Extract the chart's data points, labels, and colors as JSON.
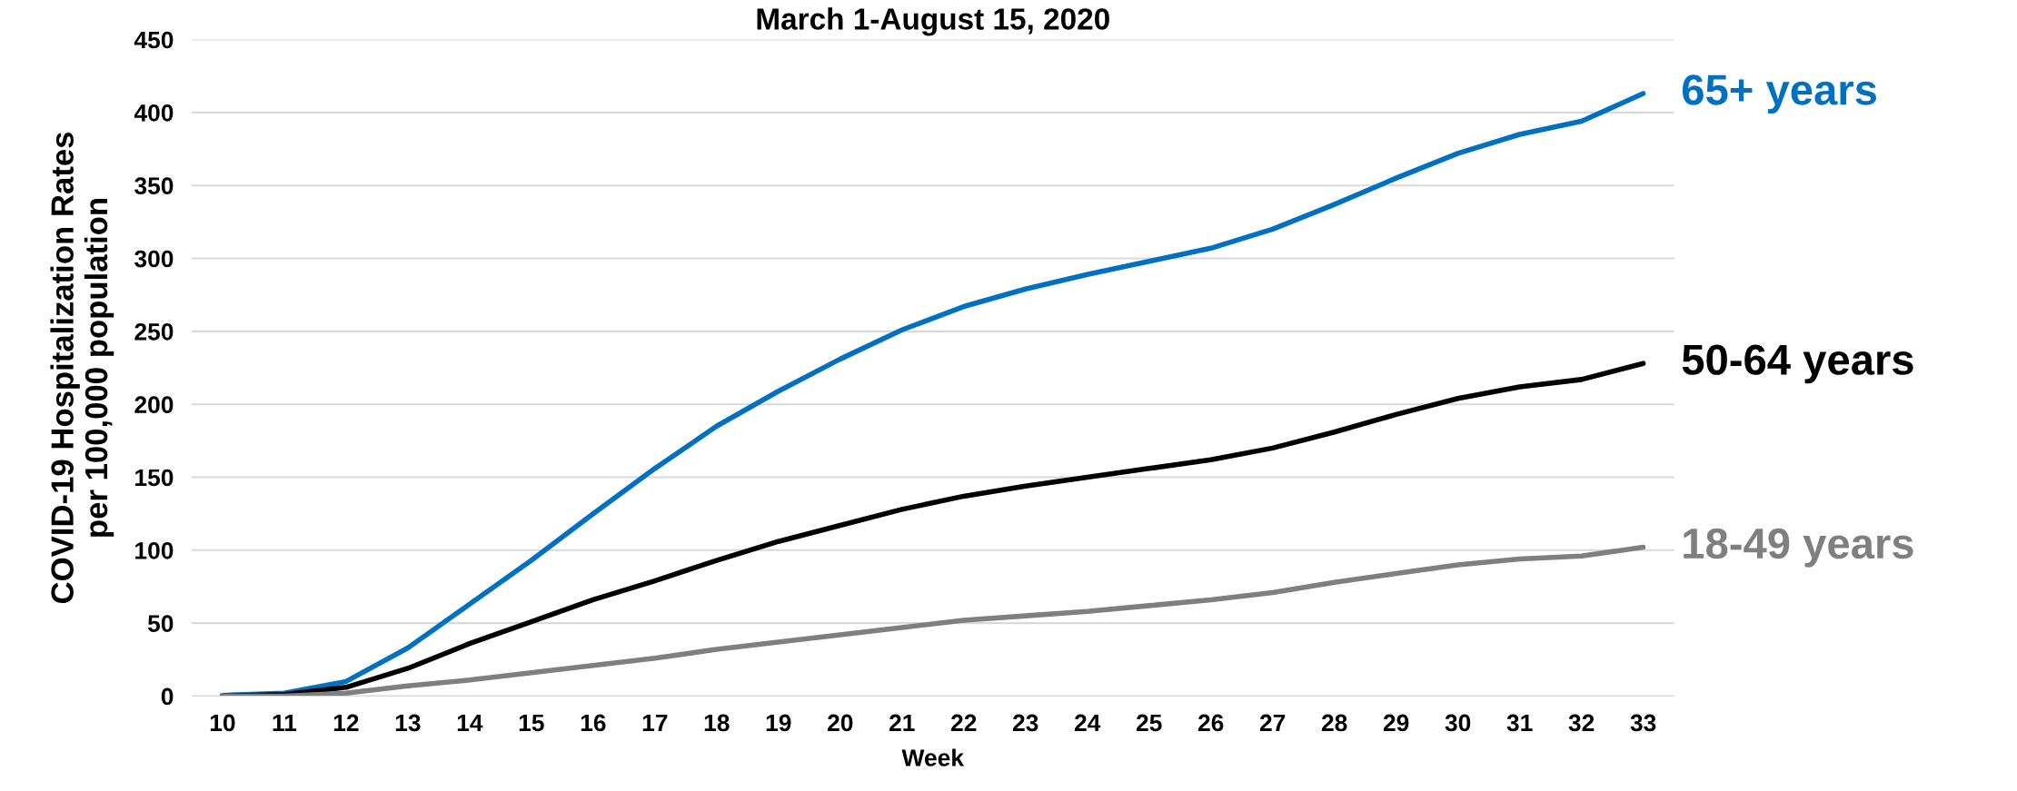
{
  "chart_data": {
    "type": "line",
    "title": "March 1-August 15, 2020",
    "xlabel": "Week",
    "ylabel": "COVID-19 Hospitalization Rates\nper 100,000 population",
    "categories": [
      "10",
      "11",
      "12",
      "13",
      "14",
      "15",
      "16",
      "17",
      "18",
      "19",
      "20",
      "21",
      "22",
      "23",
      "24",
      "25",
      "26",
      "27",
      "28",
      "29",
      "30",
      "31",
      "32",
      "33"
    ],
    "series": [
      {
        "name": "65+ years",
        "color": "#0070c0",
        "values": [
          0.5,
          2,
          10,
          33,
          63,
          93,
          125,
          156,
          185,
          209,
          231,
          251,
          267,
          279,
          289,
          298,
          307,
          320,
          337,
          355,
          372,
          385,
          394,
          413
        ]
      },
      {
        "name": "50-64 years",
        "color": "#000000",
        "values": [
          0,
          1,
          6,
          19,
          36,
          51,
          66,
          79,
          93,
          106,
          117,
          128,
          137,
          144,
          150,
          156,
          162,
          170,
          181,
          193,
          204,
          212,
          217,
          228
        ]
      },
      {
        "name": "18-49 years",
        "color": "#7f7f7f",
        "values": [
          0,
          0,
          2,
          7,
          11,
          16,
          21,
          26,
          32,
          37,
          42,
          47,
          52,
          55,
          58,
          62,
          66,
          71,
          78,
          84,
          90,
          94,
          96,
          102
        ]
      }
    ],
    "ylim": [
      0,
      450
    ],
    "yticks": [
      0,
      50,
      100,
      150,
      200,
      250,
      300,
      350,
      400,
      450
    ],
    "grid": "y",
    "legend": false,
    "marker": "none",
    "line_style": "solid"
  }
}
